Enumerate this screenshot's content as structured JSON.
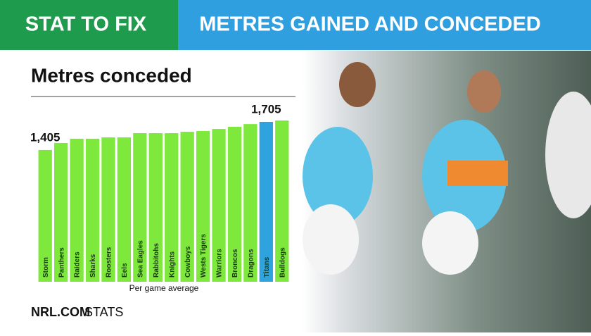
{
  "header": {
    "left": "STAT TO FIX",
    "right": "METRES GAINED AND CONCEDED"
  },
  "chart_data": {
    "type": "bar",
    "title": "Metres conceded",
    "x_label": "Per game average",
    "categories": [
      "Storm",
      "Panthers",
      "Raiders",
      "Sharks",
      "Roosters",
      "Eels",
      "Sea Eagles",
      "Rabbitohs",
      "Knights",
      "Cowboys",
      "Wests Tigers",
      "Warriors",
      "Broncos",
      "Dragons",
      "Titans",
      "Bulldogs"
    ],
    "values": [
      1405,
      1480,
      1525,
      1525,
      1539,
      1539,
      1584,
      1584,
      1584,
      1599,
      1607,
      1629,
      1652,
      1681,
      1705,
      1719
    ],
    "value_labels": [
      "1,405",
      null,
      null,
      null,
      null,
      null,
      null,
      null,
      null,
      null,
      null,
      null,
      null,
      null,
      "1,705",
      null
    ],
    "colors": [
      "#7ee83c",
      "#7ee83c",
      "#7ee83c",
      "#7ee83c",
      "#7ee83c",
      "#7ee83c",
      "#7ee83c",
      "#7ee83c",
      "#7ee83c",
      "#7ee83c",
      "#7ee83c",
      "#7ee83c",
      "#7ee83c",
      "#7ee83c",
      "#2ea3de",
      "#7ee83c"
    ],
    "ylim": [
      0,
      1900
    ]
  },
  "footer": {
    "brand": "NRL.COM",
    "section": "STATS"
  }
}
